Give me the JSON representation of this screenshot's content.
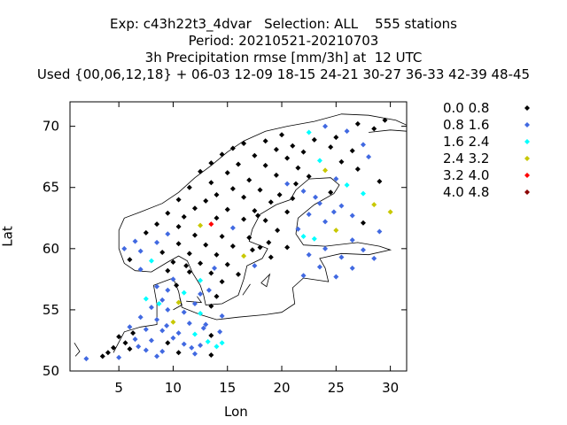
{
  "chart_data": {
    "type": "scatter",
    "title_lines": [
      "Exp: c43h22t3_4dvar   Selection: ALL    555 stations",
      "Period: 20210521-20210703",
      "3h Precipitation rmse [mm/3h] at  12 UTC",
      "Used {00,06,12,18} + 06-03 12-09 18-15 24-21 30-27 36-33 42-39 48-45"
    ],
    "xlabel": "Lon",
    "ylabel": "Lat",
    "xlim": [
      0.5,
      31.5
    ],
    "ylim": [
      50,
      72
    ],
    "xticks": [
      5,
      10,
      15,
      20,
      25,
      30
    ],
    "yticks": [
      50,
      55,
      60,
      65,
      70
    ],
    "grid": false,
    "legend_position": "right",
    "classes": [
      {
        "label": "0.0 0.8",
        "color": "#000000"
      },
      {
        "label": "0.8 1.6",
        "color": "#4169e1"
      },
      {
        "label": "1.6 2.4",
        "color": "#00ffff"
      },
      {
        "label": "2.4 3.2",
        "color": "#c8c800"
      },
      {
        "label": "3.2 4.0",
        "color": "#ff0000"
      },
      {
        "label": "4.0 4.8",
        "color": "#8b0000"
      }
    ],
    "points": [
      [
        29.5,
        70.5,
        0
      ],
      [
        27.0,
        70.2,
        0
      ],
      [
        24.0,
        70.0,
        1
      ],
      [
        28.5,
        69.8,
        0
      ],
      [
        26.0,
        69.6,
        1
      ],
      [
        22.5,
        69.5,
        2
      ],
      [
        20.0,
        69.3,
        0
      ],
      [
        25.0,
        69.1,
        0
      ],
      [
        23.0,
        68.9,
        0
      ],
      [
        18.5,
        68.8,
        0
      ],
      [
        16.5,
        68.6,
        0
      ],
      [
        27.5,
        68.5,
        1
      ],
      [
        21.0,
        68.4,
        0
      ],
      [
        24.5,
        68.3,
        0
      ],
      [
        15.5,
        68.2,
        0
      ],
      [
        19.5,
        68.1,
        0
      ],
      [
        26.5,
        68.0,
        0
      ],
      [
        22.0,
        67.9,
        0
      ],
      [
        14.5,
        67.7,
        0
      ],
      [
        17.5,
        67.6,
        0
      ],
      [
        28.0,
        67.5,
        1
      ],
      [
        20.5,
        67.4,
        0
      ],
      [
        23.5,
        67.2,
        2
      ],
      [
        25.5,
        67.1,
        0
      ],
      [
        13.5,
        67.0,
        0
      ],
      [
        16.0,
        66.9,
        0
      ],
      [
        18.5,
        66.8,
        0
      ],
      [
        21.5,
        66.6,
        0
      ],
      [
        27.0,
        66.5,
        0
      ],
      [
        24.0,
        66.4,
        3
      ],
      [
        12.5,
        66.3,
        0
      ],
      [
        15.0,
        66.2,
        0
      ],
      [
        19.5,
        66.0,
        0
      ],
      [
        22.5,
        65.9,
        0
      ],
      [
        25.0,
        65.7,
        1
      ],
      [
        17.0,
        65.6,
        0
      ],
      [
        29.0,
        65.5,
        0
      ],
      [
        13.5,
        65.4,
        0
      ],
      [
        20.5,
        65.3,
        1
      ],
      [
        26.0,
        65.2,
        2
      ],
      [
        11.5,
        65.0,
        0
      ],
      [
        15.5,
        64.9,
        0
      ],
      [
        18.0,
        64.8,
        0
      ],
      [
        22.0,
        64.7,
        1
      ],
      [
        24.5,
        64.6,
        0
      ],
      [
        27.5,
        64.5,
        2
      ],
      [
        14.0,
        64.4,
        0
      ],
      [
        16.5,
        64.2,
        0
      ],
      [
        21.0,
        64.1,
        0
      ],
      [
        10.5,
        64.0,
        0
      ],
      [
        13.0,
        63.9,
        0
      ],
      [
        19.0,
        63.8,
        0
      ],
      [
        23.5,
        63.7,
        1
      ],
      [
        28.5,
        63.6,
        3
      ],
      [
        25.5,
        63.5,
        1
      ],
      [
        12.0,
        63.3,
        0
      ],
      [
        15.0,
        63.2,
        0
      ],
      [
        17.5,
        63.1,
        0
      ],
      [
        20.5,
        63.0,
        0
      ],
      [
        30.0,
        63.0,
        3
      ],
      [
        9.5,
        62.9,
        0
      ],
      [
        22.5,
        62.8,
        1
      ],
      [
        26.5,
        62.7,
        1
      ],
      [
        11.0,
        62.6,
        0
      ],
      [
        14.0,
        62.5,
        0
      ],
      [
        16.5,
        62.4,
        0
      ],
      [
        18.5,
        62.3,
        0
      ],
      [
        24.0,
        62.2,
        1
      ],
      [
        27.5,
        62.1,
        0
      ],
      [
        13.5,
        62.0,
        4
      ],
      [
        8.5,
        62.0,
        0
      ],
      [
        12.5,
        61.9,
        3
      ],
      [
        10.5,
        61.8,
        0
      ],
      [
        15.5,
        61.7,
        1
      ],
      [
        21.5,
        61.6,
        1
      ],
      [
        25.0,
        61.5,
        3
      ],
      [
        29.0,
        61.4,
        1
      ],
      [
        7.5,
        61.3,
        0
      ],
      [
        9.5,
        61.2,
        1
      ],
      [
        12.0,
        61.1,
        0
      ],
      [
        14.5,
        61.0,
        0
      ],
      [
        17.0,
        60.9,
        0
      ],
      [
        23.0,
        60.8,
        2
      ],
      [
        26.5,
        60.7,
        1
      ],
      [
        6.5,
        60.6,
        1
      ],
      [
        8.5,
        60.5,
        1
      ],
      [
        10.5,
        60.4,
        0
      ],
      [
        13.0,
        60.3,
        0
      ],
      [
        15.5,
        60.2,
        0
      ],
      [
        18.0,
        60.1,
        0
      ],
      [
        20.5,
        60.1,
        0
      ],
      [
        24.0,
        60.0,
        1
      ],
      [
        27.5,
        59.9,
        1
      ],
      [
        5.5,
        60.0,
        1
      ],
      [
        7.0,
        59.8,
        1
      ],
      [
        9.0,
        59.7,
        0
      ],
      [
        11.5,
        59.6,
        0
      ],
      [
        14.0,
        59.5,
        0
      ],
      [
        16.5,
        59.4,
        3
      ],
      [
        19.0,
        59.3,
        0
      ],
      [
        22.5,
        59.5,
        1
      ],
      [
        25.5,
        59.3,
        1
      ],
      [
        28.5,
        59.2,
        1
      ],
      [
        6.0,
        59.1,
        0
      ],
      [
        8.0,
        59.0,
        2
      ],
      [
        10.0,
        58.9,
        0
      ],
      [
        12.5,
        58.8,
        0
      ],
      [
        15.0,
        58.7,
        0
      ],
      [
        17.5,
        58.6,
        1
      ],
      [
        23.5,
        58.5,
        1
      ],
      [
        26.5,
        58.4,
        1
      ],
      [
        7.0,
        58.3,
        1
      ],
      [
        9.5,
        58.2,
        0
      ],
      [
        11.5,
        58.1,
        0
      ],
      [
        13.5,
        58.0,
        0
      ],
      [
        16.0,
        57.9,
        0
      ],
      [
        22.0,
        57.8,
        1
      ],
      [
        25.0,
        57.7,
        1
      ],
      [
        10.0,
        57.5,
        1
      ],
      [
        12.5,
        57.4,
        2
      ],
      [
        14.5,
        57.3,
        0
      ],
      [
        8.5,
        56.9,
        1
      ],
      [
        9.5,
        56.6,
        1
      ],
      [
        11.0,
        56.4,
        2
      ],
      [
        12.5,
        56.3,
        1
      ],
      [
        14.0,
        56.1,
        0
      ],
      [
        7.5,
        55.9,
        2
      ],
      [
        9.0,
        55.8,
        1
      ],
      [
        10.5,
        55.6,
        3
      ],
      [
        12.0,
        55.5,
        1
      ],
      [
        13.5,
        55.3,
        0
      ],
      [
        8.0,
        55.2,
        1
      ],
      [
        9.5,
        55.0,
        1
      ],
      [
        11.0,
        54.8,
        1
      ],
      [
        12.5,
        54.7,
        2
      ],
      [
        14.5,
        54.5,
        1
      ],
      [
        7.0,
        54.4,
        1
      ],
      [
        8.5,
        54.2,
        1
      ],
      [
        10.0,
        54.0,
        3
      ],
      [
        11.5,
        53.9,
        1
      ],
      [
        13.0,
        53.8,
        1
      ],
      [
        6.0,
        53.6,
        1
      ],
      [
        7.5,
        53.4,
        1
      ],
      [
        9.0,
        53.3,
        1
      ],
      [
        10.5,
        53.1,
        1
      ],
      [
        12.0,
        53.0,
        2
      ],
      [
        13.5,
        52.9,
        0
      ],
      [
        5.0,
        52.8,
        0
      ],
      [
        6.5,
        52.6,
        1
      ],
      [
        8.0,
        52.5,
        1
      ],
      [
        9.5,
        52.3,
        0
      ],
      [
        11.0,
        52.2,
        1
      ],
      [
        12.5,
        52.1,
        1
      ],
      [
        14.0,
        52.0,
        2
      ],
      [
        4.5,
        51.9,
        0
      ],
      [
        6.0,
        51.8,
        0
      ],
      [
        7.5,
        51.7,
        1
      ],
      [
        9.0,
        51.6,
        1
      ],
      [
        10.5,
        51.5,
        0
      ],
      [
        12.0,
        51.4,
        1
      ],
      [
        13.5,
        51.3,
        0
      ],
      [
        3.5,
        51.2,
        0
      ],
      [
        5.0,
        51.1,
        1
      ],
      [
        2.0,
        51.0,
        1
      ],
      [
        8.5,
        51.2,
        1
      ],
      [
        14.5,
        52.3,
        2
      ],
      [
        4.0,
        51.5,
        0
      ],
      [
        6.8,
        52.0,
        1
      ],
      [
        10.0,
        52.7,
        1
      ],
      [
        11.7,
        51.9,
        1
      ],
      [
        13.2,
        52.4,
        2
      ],
      [
        5.6,
        52.3,
        0
      ],
      [
        6.3,
        53.1,
        0
      ],
      [
        9.4,
        53.7,
        1
      ],
      [
        12.8,
        53.5,
        1
      ],
      [
        14.3,
        53.2,
        1
      ],
      [
        8.7,
        55.5,
        2
      ],
      [
        13.3,
        56.6,
        1
      ],
      [
        10.3,
        57.0,
        0
      ],
      [
        13.8,
        58.4,
        1
      ],
      [
        11.2,
        58.6,
        0
      ],
      [
        17.3,
        59.9,
        0
      ],
      [
        18.8,
        60.5,
        0
      ],
      [
        19.6,
        61.5,
        0
      ],
      [
        17.8,
        62.7,
        0
      ],
      [
        19.8,
        64.4,
        0
      ],
      [
        21.3,
        65.3,
        0
      ],
      [
        23.1,
        64.2,
        1
      ],
      [
        24.8,
        63.0,
        1
      ],
      [
        22.0,
        61.0,
        2
      ]
    ]
  }
}
